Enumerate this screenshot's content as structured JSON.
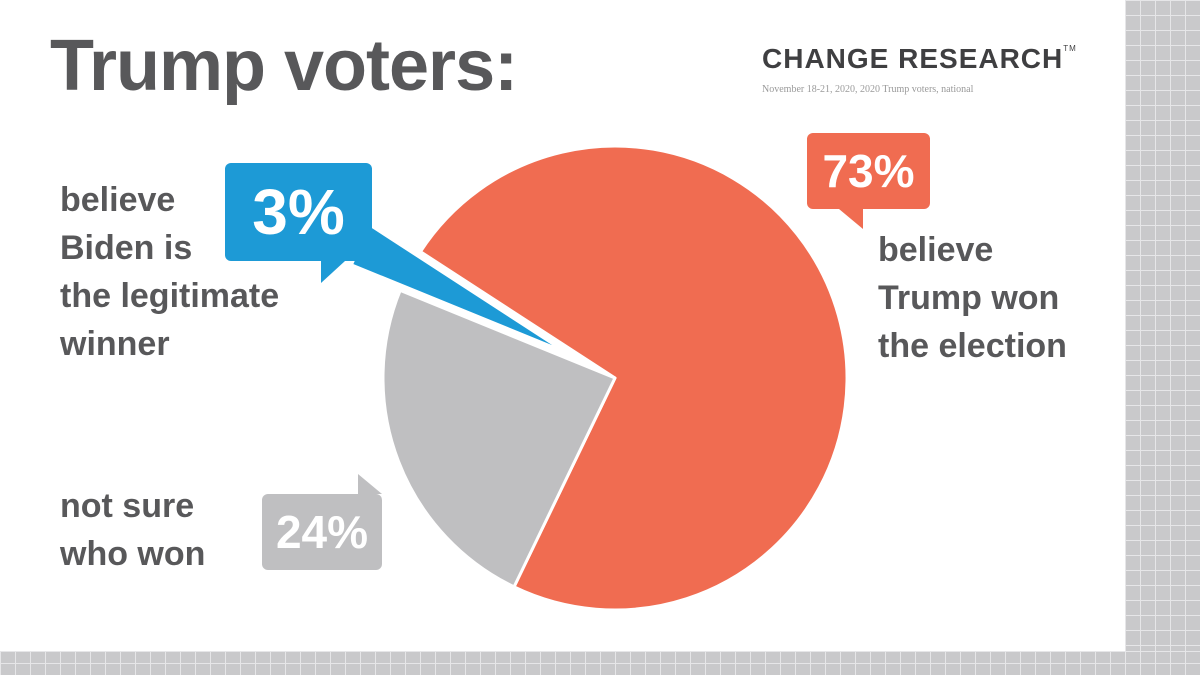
{
  "title": "Trump voters:",
  "logo": {
    "text": "CHANGE RESEARCH",
    "tm": "TM"
  },
  "source": "November 18-21, 2020, 2020 Trump voters, national",
  "labels": {
    "biden": "believe\nBiden is\nthe legitimate\nwinner",
    "trump": "believe\nTrump won\nthe election",
    "notsure": "not sure\nwho won"
  },
  "chart_data": {
    "type": "pie",
    "slices": [
      {
        "name": "believe Trump won the election",
        "value": 73,
        "label": "73%",
        "color": "#f06c51"
      },
      {
        "name": "not sure who won",
        "value": 24,
        "label": "24%",
        "color": "#bfbfc1"
      },
      {
        "name": "believe Biden is the legitimate winner",
        "value": 3,
        "label": "3%",
        "color": "#1d9ad6",
        "exploded": true
      }
    ]
  },
  "colors": {
    "background": "#ffffff",
    "text": "#58585a",
    "grid": "#c9c9cb"
  }
}
